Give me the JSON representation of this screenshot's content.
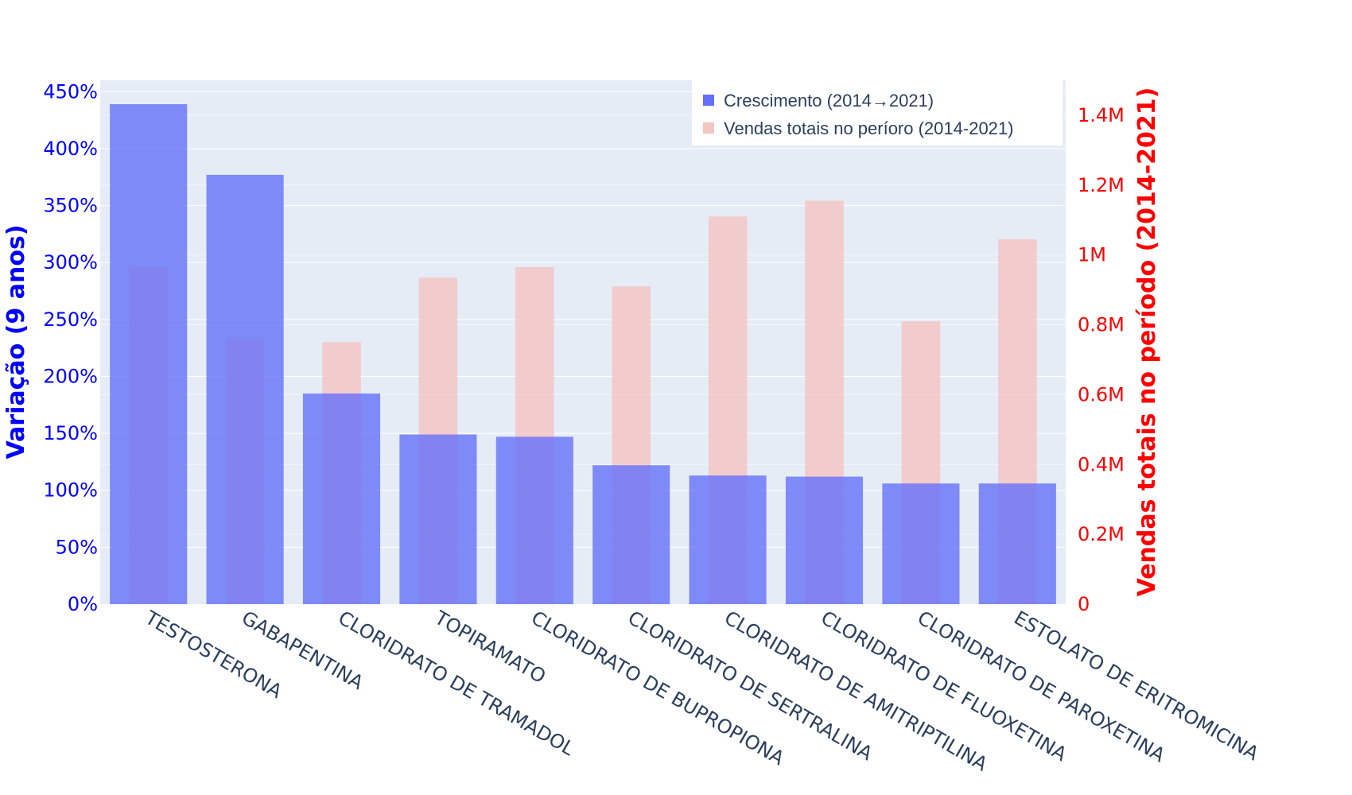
{
  "chart_data": {
    "type": "bar",
    "categories": [
      "TESTOSTERONA",
      "GABAPENTINA",
      "CLORIDRATO DE TRAMADOL",
      "TOPIRAMATO",
      "CLORIDRATO DE BUPROPIONA",
      "CLORIDRATO DE SERTRALINA",
      "CLORIDRATO DE AMITRIPTILINA",
      "CLORIDRATO DE FLUOXETINA",
      "CLORIDRATO DE PAROXETINA",
      "ESTOLATO DE ERITROMICINA"
    ],
    "series": [
      {
        "name": "Crescimento (2014→2021)",
        "axis": "left",
        "color": "#636efa",
        "values": [
          4.39,
          3.77,
          1.85,
          1.49,
          1.47,
          1.22,
          1.13,
          1.12,
          1.06,
          1.06
        ]
      },
      {
        "name": "Vendas totais no períoro (2014-2021)",
        "axis": "right",
        "color": "#f4c6c6",
        "values": [
          965000,
          760000,
          750000,
          935000,
          965000,
          910000,
          1110000,
          1155000,
          810000,
          1045000
        ]
      }
    ],
    "ylabel": "Variação (9 anos)",
    "y2label": "Vendas totais no período (2014-2021)",
    "ylim": [
      0,
      4.6
    ],
    "y2lim": [
      0,
      1500000
    ],
    "yticks": [
      {
        "v": 0,
        "label": "0%"
      },
      {
        "v": 0.5,
        "label": "50%"
      },
      {
        "v": 1,
        "label": "100%"
      },
      {
        "v": 1.5,
        "label": "150%"
      },
      {
        "v": 2,
        "label": "200%"
      },
      {
        "v": 2.5,
        "label": "250%"
      },
      {
        "v": 3,
        "label": "300%"
      },
      {
        "v": 3.5,
        "label": "350%"
      },
      {
        "v": 4,
        "label": "400%"
      },
      {
        "v": 4.5,
        "label": "450%"
      }
    ],
    "y2ticks": [
      {
        "v": 0,
        "label": "0"
      },
      {
        "v": 200000,
        "label": "0.2M"
      },
      {
        "v": 400000,
        "label": "0.4M"
      },
      {
        "v": 600000,
        "label": "0.6M"
      },
      {
        "v": 800000,
        "label": "0.8M"
      },
      {
        "v": 1000000,
        "label": "1M"
      },
      {
        "v": 1200000,
        "label": "1.2M"
      },
      {
        "v": 1400000,
        "label": "1.4M"
      }
    ],
    "grid": true,
    "legend_position": "top-right",
    "colors": {
      "plot_bg": "#e5ecf6",
      "left_axis": "#0000ff",
      "right_axis": "#ff0000",
      "tick_text": "#2a3f5f",
      "grid": "#ffffff"
    }
  }
}
